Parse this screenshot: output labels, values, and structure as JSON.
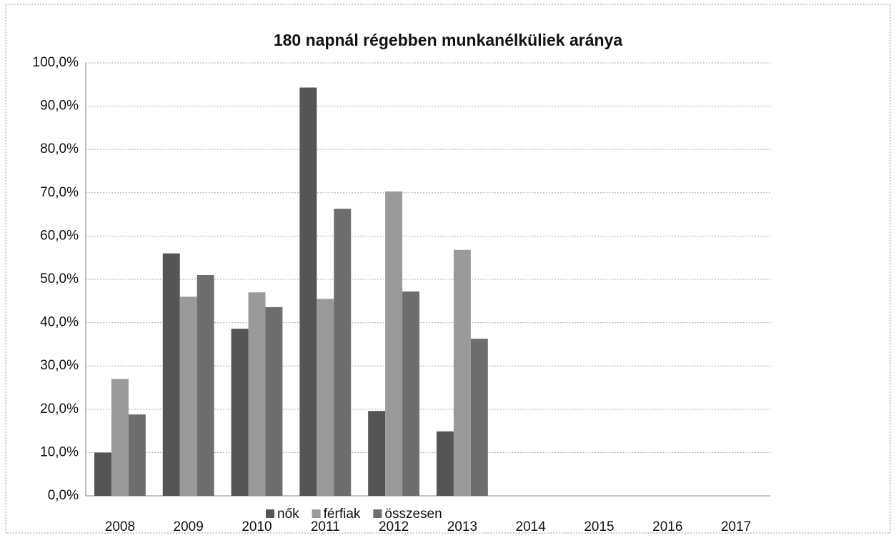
{
  "chart_data": {
    "type": "bar",
    "title": "180 napnál régebben munkanélküliek aránya",
    "categories": [
      "2008",
      "2009",
      "2010",
      "2011",
      "2012",
      "2013",
      "2014",
      "2015",
      "2016",
      "2017"
    ],
    "series": [
      {
        "name": "nők",
        "color": "#555555",
        "values": [
          10,
          56,
          38.6,
          94.3,
          19.6,
          14.9,
          null,
          null,
          null,
          null
        ]
      },
      {
        "name": "férfiak",
        "color": "#9a9a9a",
        "values": [
          27,
          46,
          47,
          45.5,
          70.3,
          56.8,
          null,
          null,
          null,
          null
        ]
      },
      {
        "name": "összesen",
        "color": "#6e6e6e",
        "values": [
          18.8,
          51,
          43.6,
          66.3,
          47.2,
          36.3,
          null,
          null,
          null,
          null
        ]
      }
    ],
    "ylim": [
      0,
      100
    ],
    "yticks": [
      {
        "value": 0,
        "label": "0,0%"
      },
      {
        "value": 10,
        "label": "10,0%"
      },
      {
        "value": 20,
        "label": "20,0%"
      },
      {
        "value": 30,
        "label": "30,0%"
      },
      {
        "value": 40,
        "label": "40,0%"
      },
      {
        "value": 50,
        "label": "50,0%"
      },
      {
        "value": 60,
        "label": "60,0%"
      },
      {
        "value": 70,
        "label": "70,0%"
      },
      {
        "value": 80,
        "label": "80,0%"
      },
      {
        "value": 90,
        "label": "90,0%"
      },
      {
        "value": 100,
        "label": "100,0%"
      }
    ],
    "grid": true,
    "legend": "bottom"
  }
}
